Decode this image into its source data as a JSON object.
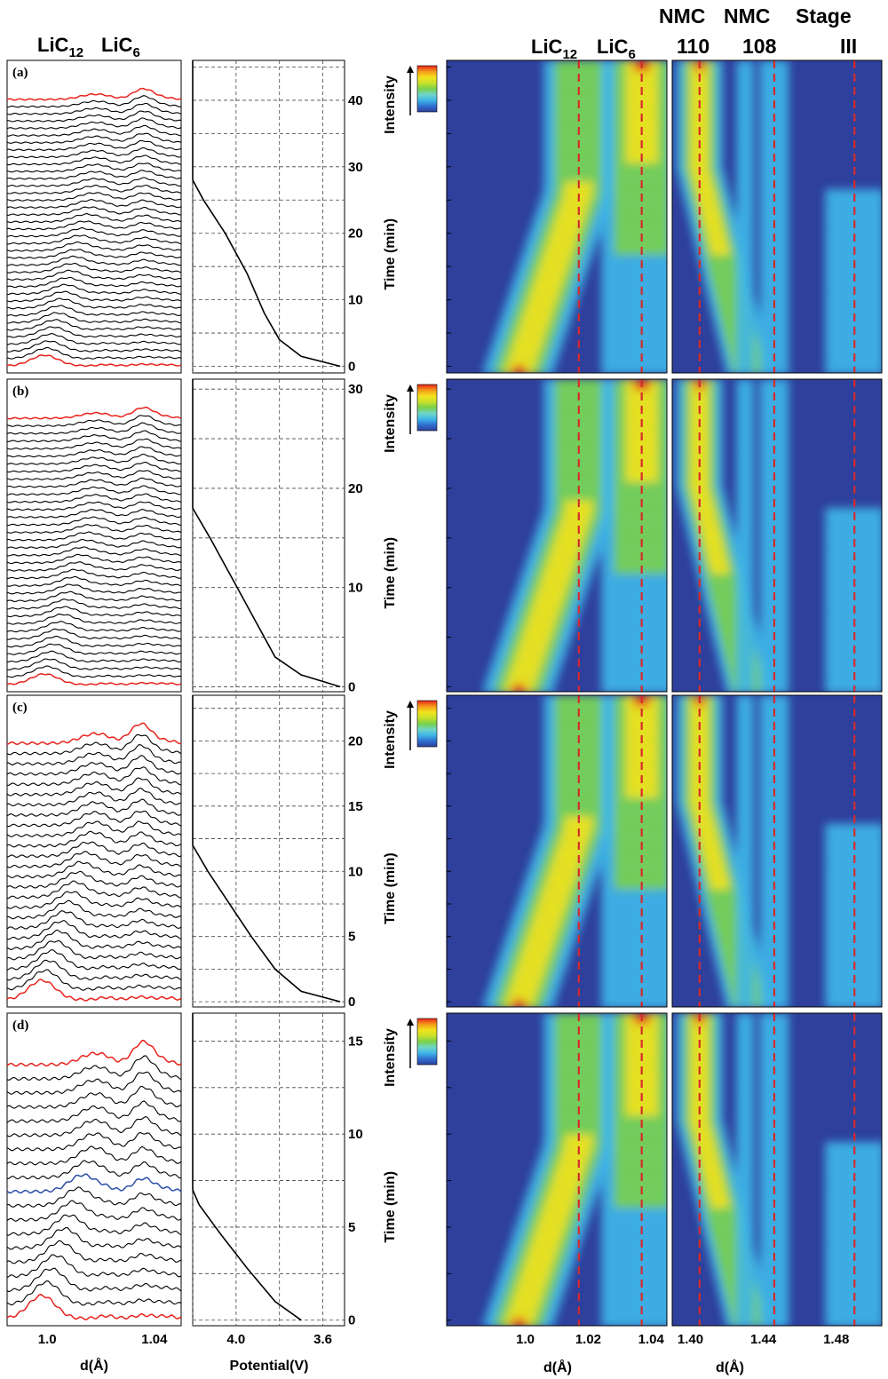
{
  "headers": {
    "left_lic12": "LiC",
    "left_lic12_sub": "12",
    "left_lic6": "LiC",
    "left_lic6_sub": "6",
    "mid_lic12": "LiC",
    "mid_lic12_sub": "12",
    "mid_lic6": "LiC",
    "mid_lic6_sub": "6",
    "nmc110_top": "NMC",
    "nmc110_bottom": "110",
    "nmc108_top": "NMC",
    "nmc108_bottom": "108",
    "stage_top": "Stage",
    "stage_bottom": "III"
  },
  "axis_labels": {
    "left_x": "d(Å)",
    "potential_x": "Potential(V)",
    "right_x": "d(Å)",
    "time": "Time (min)",
    "intensity": "Intensity"
  },
  "colors": {
    "first_last_trace": "#e8231c",
    "highlight_trace": "#2c4ea8",
    "trace": "#000000",
    "reference_line": "#d62b2b",
    "heatmap_background": "#2e3f9c",
    "colormap": [
      "#2e3f9c",
      "#2f6fd0",
      "#3fb6e8",
      "#6fd6c8",
      "#7ad04a",
      "#c9e12a",
      "#f2e21c",
      "#f59a1a",
      "#e8231c"
    ]
  },
  "chart_data": [
    {
      "type": "line",
      "panel": "(a)",
      "subplots": [
        {
          "name": "stacked diffraction patterns",
          "xlabel": "d(Å)",
          "xticks": [
            1.0,
            1.04
          ],
          "xlim": [
            0.985,
            1.05
          ],
          "n_traces": 38,
          "first_trace_peak_d": 0.999,
          "last_trace_peak_d": 1.036,
          "highlight_index": null
        },
        {
          "name": "potential",
          "xlabel": "Potential(V)",
          "xticks": [
            4.0,
            3.6
          ],
          "xlim": [
            4.2,
            3.5
          ],
          "ylim": [
            -1,
            46
          ],
          "yticks": [
            0,
            10,
            20,
            30,
            40
          ],
          "curve": [
            [
              3.52,
              0
            ],
            [
              3.7,
              1.5
            ],
            [
              3.8,
              4
            ],
            [
              3.87,
              8
            ],
            [
              3.95,
              14
            ],
            [
              4.05,
              20
            ],
            [
              4.15,
              25
            ],
            [
              4.2,
              28
            ],
            [
              4.2,
              46
            ]
          ]
        },
        {
          "name": "LiC12/LiC6 heatmap",
          "type": "heatmap",
          "xlabel": "d(Å)",
          "xticks": [
            1.0,
            1.02,
            1.04
          ],
          "xlim": [
            0.975,
            1.045
          ],
          "ylim": [
            -1,
            46
          ],
          "reference_lines": [
            1.017,
            1.037
          ]
        },
        {
          "name": "NMC heatmap",
          "type": "heatmap",
          "xlabel": "d(Å)",
          "xticks": [
            1.4,
            1.44,
            1.48
          ],
          "xlim": [
            1.39,
            1.505
          ],
          "ylim": [
            -1,
            46
          ],
          "reference_lines": [
            1.405,
            1.446,
            1.49
          ]
        }
      ]
    },
    {
      "type": "line",
      "panel": "(b)",
      "subplots": [
        {
          "name": "stacked diffraction patterns",
          "xlim": [
            0.985,
            1.05
          ],
          "n_traces": 36,
          "first_trace_peak_d": 0.999,
          "last_trace_peak_d": 1.036,
          "highlight_index": null
        },
        {
          "name": "potential",
          "xlim": [
            4.2,
            3.5
          ],
          "ylim": [
            -0.5,
            31
          ],
          "yticks": [
            0,
            10,
            20,
            30
          ],
          "curve": [
            [
              3.52,
              0
            ],
            [
              3.7,
              1.2
            ],
            [
              3.82,
              3
            ],
            [
              3.92,
              7
            ],
            [
              4.02,
              11
            ],
            [
              4.12,
              15
            ],
            [
              4.2,
              18
            ],
            [
              4.2,
              31
            ]
          ]
        },
        {
          "name": "LiC12/LiC6 heatmap",
          "type": "heatmap",
          "xlim": [
            0.975,
            1.045
          ],
          "ylim": [
            -0.5,
            31
          ],
          "reference_lines": [
            1.017,
            1.037
          ]
        },
        {
          "name": "NMC heatmap",
          "type": "heatmap",
          "xlim": [
            1.39,
            1.505
          ],
          "ylim": [
            -0.5,
            31
          ],
          "reference_lines": [
            1.405,
            1.446,
            1.49
          ]
        }
      ]
    },
    {
      "type": "line",
      "panel": "(c)",
      "subplots": [
        {
          "name": "stacked diffraction patterns",
          "xlim": [
            0.985,
            1.05
          ],
          "n_traces": 26,
          "first_trace_peak_d": 0.998,
          "last_trace_peak_d": 1.035,
          "highlight_index": null
        },
        {
          "name": "potential",
          "xlim": [
            4.2,
            3.5
          ],
          "ylim": [
            -0.4,
            23.5
          ],
          "yticks": [
            0,
            5,
            10,
            15,
            20
          ],
          "curve": [
            [
              3.52,
              0
            ],
            [
              3.7,
              0.8
            ],
            [
              3.82,
              2.5
            ],
            [
              3.93,
              5
            ],
            [
              4.03,
              7.5
            ],
            [
              4.13,
              10
            ],
            [
              4.2,
              12
            ],
            [
              4.2,
              23.5
            ]
          ]
        },
        {
          "name": "LiC12/LiC6 heatmap",
          "type": "heatmap",
          "xlim": [
            0.975,
            1.045
          ],
          "ylim": [
            -0.4,
            23.5
          ],
          "reference_lines": [
            1.017,
            1.037
          ]
        },
        {
          "name": "NMC heatmap",
          "type": "heatmap",
          "xlim": [
            1.39,
            1.505
          ],
          "ylim": [
            -0.4,
            23.5
          ],
          "reference_lines": [
            1.405,
            1.446,
            1.49
          ]
        }
      ]
    },
    {
      "type": "line",
      "panel": "(d)",
      "subplots": [
        {
          "name": "stacked diffraction patterns",
          "xlim": [
            0.985,
            1.05
          ],
          "n_traces": 19,
          "first_trace_peak_d": 0.998,
          "last_trace_peak_d": 1.036,
          "highlight_index": 9
        },
        {
          "name": "potential",
          "xlim": [
            4.2,
            3.5
          ],
          "ylim": [
            -0.3,
            16.5
          ],
          "yticks": [
            0,
            5,
            10,
            15
          ],
          "curve": [
            [
              3.7,
              0
            ],
            [
              3.82,
              1
            ],
            [
              3.95,
              2.8
            ],
            [
              4.07,
              4.6
            ],
            [
              4.17,
              6.2
            ],
            [
              4.2,
              7
            ],
            [
              4.2,
              16.5
            ]
          ]
        },
        {
          "name": "LiC12/LiC6 heatmap",
          "type": "heatmap",
          "xlim": [
            0.975,
            1.045
          ],
          "ylim": [
            -0.3,
            16.5
          ],
          "reference_lines": [
            1.017,
            1.037
          ]
        },
        {
          "name": "NMC heatmap",
          "type": "heatmap",
          "xlim": [
            1.39,
            1.505
          ],
          "ylim": [
            -0.3,
            16.5
          ],
          "reference_lines": [
            1.405,
            1.446,
            1.49
          ]
        }
      ]
    }
  ]
}
